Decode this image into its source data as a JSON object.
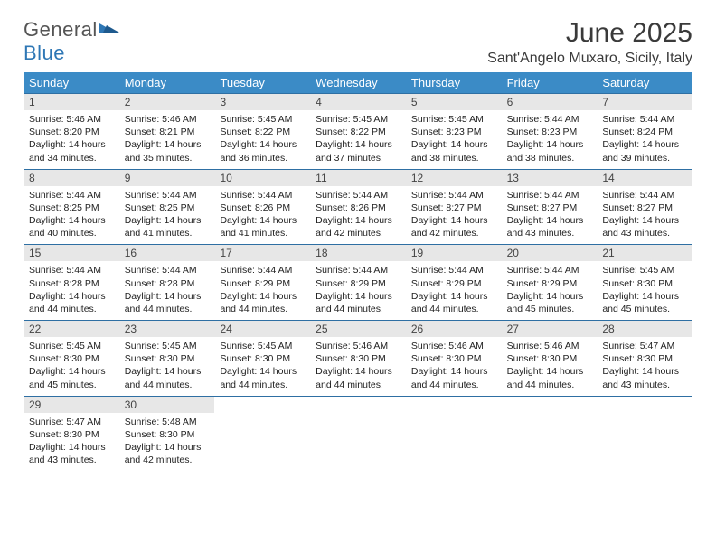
{
  "logo": {
    "line1": "General",
    "line2": "Blue",
    "blue_color": "#2e77b5"
  },
  "title": "June 2025",
  "location": "Sant'Angelo Muxaro, Sicily, Italy",
  "header_bg": "#3b8bc6",
  "daynum_bg": "#e7e7e7",
  "week_border": "#2e6fa3",
  "day_headers": [
    "Sunday",
    "Monday",
    "Tuesday",
    "Wednesday",
    "Thursday",
    "Friday",
    "Saturday"
  ],
  "weeks": [
    [
      {
        "n": "1",
        "sr": "5:46 AM",
        "ss": "8:20 PM",
        "dh": "14",
        "dm": "34"
      },
      {
        "n": "2",
        "sr": "5:46 AM",
        "ss": "8:21 PM",
        "dh": "14",
        "dm": "35"
      },
      {
        "n": "3",
        "sr": "5:45 AM",
        "ss": "8:22 PM",
        "dh": "14",
        "dm": "36"
      },
      {
        "n": "4",
        "sr": "5:45 AM",
        "ss": "8:22 PM",
        "dh": "14",
        "dm": "37"
      },
      {
        "n": "5",
        "sr": "5:45 AM",
        "ss": "8:23 PM",
        "dh": "14",
        "dm": "38"
      },
      {
        "n": "6",
        "sr": "5:44 AM",
        "ss": "8:23 PM",
        "dh": "14",
        "dm": "38"
      },
      {
        "n": "7",
        "sr": "5:44 AM",
        "ss": "8:24 PM",
        "dh": "14",
        "dm": "39"
      }
    ],
    [
      {
        "n": "8",
        "sr": "5:44 AM",
        "ss": "8:25 PM",
        "dh": "14",
        "dm": "40"
      },
      {
        "n": "9",
        "sr": "5:44 AM",
        "ss": "8:25 PM",
        "dh": "14",
        "dm": "41"
      },
      {
        "n": "10",
        "sr": "5:44 AM",
        "ss": "8:26 PM",
        "dh": "14",
        "dm": "41"
      },
      {
        "n": "11",
        "sr": "5:44 AM",
        "ss": "8:26 PM",
        "dh": "14",
        "dm": "42"
      },
      {
        "n": "12",
        "sr": "5:44 AM",
        "ss": "8:27 PM",
        "dh": "14",
        "dm": "42"
      },
      {
        "n": "13",
        "sr": "5:44 AM",
        "ss": "8:27 PM",
        "dh": "14",
        "dm": "43"
      },
      {
        "n": "14",
        "sr": "5:44 AM",
        "ss": "8:27 PM",
        "dh": "14",
        "dm": "43"
      }
    ],
    [
      {
        "n": "15",
        "sr": "5:44 AM",
        "ss": "8:28 PM",
        "dh": "14",
        "dm": "44"
      },
      {
        "n": "16",
        "sr": "5:44 AM",
        "ss": "8:28 PM",
        "dh": "14",
        "dm": "44"
      },
      {
        "n": "17",
        "sr": "5:44 AM",
        "ss": "8:29 PM",
        "dh": "14",
        "dm": "44"
      },
      {
        "n": "18",
        "sr": "5:44 AM",
        "ss": "8:29 PM",
        "dh": "14",
        "dm": "44"
      },
      {
        "n": "19",
        "sr": "5:44 AM",
        "ss": "8:29 PM",
        "dh": "14",
        "dm": "44"
      },
      {
        "n": "20",
        "sr": "5:44 AM",
        "ss": "8:29 PM",
        "dh": "14",
        "dm": "45"
      },
      {
        "n": "21",
        "sr": "5:45 AM",
        "ss": "8:30 PM",
        "dh": "14",
        "dm": "45"
      }
    ],
    [
      {
        "n": "22",
        "sr": "5:45 AM",
        "ss": "8:30 PM",
        "dh": "14",
        "dm": "45"
      },
      {
        "n": "23",
        "sr": "5:45 AM",
        "ss": "8:30 PM",
        "dh": "14",
        "dm": "44"
      },
      {
        "n": "24",
        "sr": "5:45 AM",
        "ss": "8:30 PM",
        "dh": "14",
        "dm": "44"
      },
      {
        "n": "25",
        "sr": "5:46 AM",
        "ss": "8:30 PM",
        "dh": "14",
        "dm": "44"
      },
      {
        "n": "26",
        "sr": "5:46 AM",
        "ss": "8:30 PM",
        "dh": "14",
        "dm": "44"
      },
      {
        "n": "27",
        "sr": "5:46 AM",
        "ss": "8:30 PM",
        "dh": "14",
        "dm": "44"
      },
      {
        "n": "28",
        "sr": "5:47 AM",
        "ss": "8:30 PM",
        "dh": "14",
        "dm": "43"
      }
    ],
    [
      {
        "n": "29",
        "sr": "5:47 AM",
        "ss": "8:30 PM",
        "dh": "14",
        "dm": "43"
      },
      {
        "n": "30",
        "sr": "5:48 AM",
        "ss": "8:30 PM",
        "dh": "14",
        "dm": "42"
      },
      null,
      null,
      null,
      null,
      null
    ]
  ],
  "labels": {
    "sunrise": "Sunrise:",
    "sunset": "Sunset:",
    "daylight": "Daylight:",
    "hours": "hours",
    "and": "and",
    "minutes": "minutes."
  }
}
